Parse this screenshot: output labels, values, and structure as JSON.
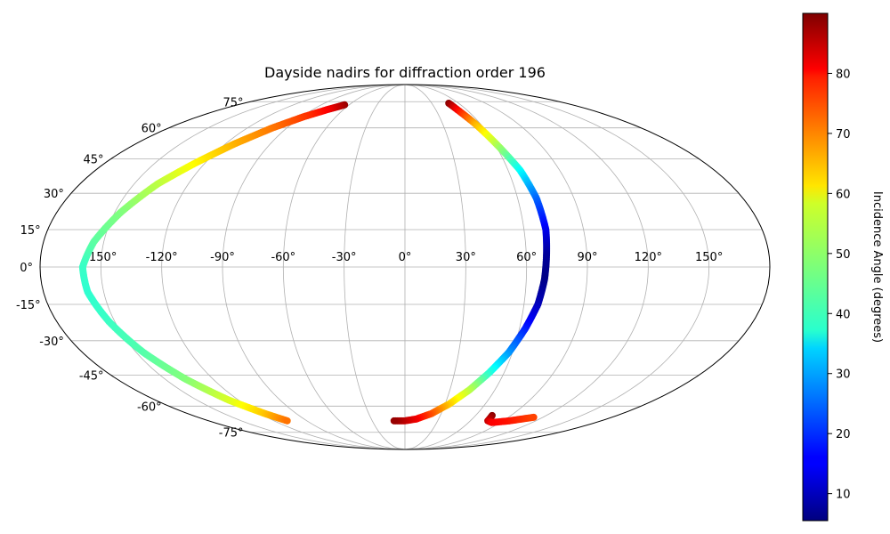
{
  "chart_data": {
    "type": "scatter",
    "projection": "mollweide",
    "title": "Dayside nadirs for diffraction order 196",
    "xlabel": "",
    "ylabel": "",
    "grid": true,
    "lon_range": [
      -180,
      180
    ],
    "lat_range": [
      -90,
      90
    ],
    "lon_ticks": [
      -150,
      -120,
      -90,
      -60,
      -30,
      0,
      30,
      60,
      90,
      120,
      150
    ],
    "lat_ticks": [
      -75,
      -60,
      -45,
      -30,
      -15,
      0,
      15,
      30,
      45,
      60,
      75
    ],
    "lon_tick_labels": [
      "-150°",
      "-120°",
      "-90°",
      "-60°",
      "-30°",
      "0°",
      "30°",
      "60°",
      "90°",
      "120°",
      "150°"
    ],
    "lat_tick_labels": [
      "-75°",
      "-60°",
      "-45°",
      "-30°",
      "-15°",
      "0°",
      "15°",
      "30°",
      "45°",
      "60°",
      "75°"
    ],
    "colorbar": {
      "label": "Incidence Angle (degrees)",
      "colormap": "jet",
      "range": [
        5.5,
        90
      ],
      "ticks": [
        10,
        20,
        30,
        40,
        50,
        60,
        70,
        80
      ],
      "tick_labels": [
        "10",
        "20",
        "30",
        "40",
        "50",
        "60",
        "70",
        "80"
      ]
    },
    "series": [
      {
        "points": [
          {
            "lon": -65,
            "lat": 73,
            "inc": 88
          },
          {
            "lon": -76,
            "lat": 70,
            "inc": 80
          },
          {
            "lon": -88,
            "lat": 66,
            "inc": 75
          },
          {
            "lon": -101,
            "lat": 60,
            "inc": 70
          },
          {
            "lon": -114,
            "lat": 52,
            "inc": 65
          },
          {
            "lon": -126,
            "lat": 43,
            "inc": 59
          },
          {
            "lon": -137,
            "lat": 34,
            "inc": 53
          },
          {
            "lon": -147,
            "lat": 22,
            "inc": 48
          },
          {
            "lon": -155,
            "lat": 10,
            "inc": 45
          },
          {
            "lon": -159,
            "lat": 0,
            "inc": 42
          },
          {
            "lon": -158,
            "lat": -10,
            "inc": 41
          },
          {
            "lon": -153,
            "lat": -22,
            "inc": 42
          },
          {
            "lon": -146,
            "lat": -35,
            "inc": 44
          },
          {
            "lon": -137,
            "lat": -47,
            "inc": 48
          },
          {
            "lon": -127,
            "lat": -57,
            "inc": 55
          },
          {
            "lon": -116,
            "lat": -64,
            "inc": 63
          },
          {
            "lon": -108,
            "lat": -68,
            "inc": 70
          }
        ]
      },
      {
        "points": [
          {
            "lon": 49,
            "lat": 74,
            "inc": 89
          },
          {
            "lon": 51,
            "lat": 70,
            "inc": 80
          },
          {
            "lon": 56,
            "lat": 62,
            "inc": 65
          },
          {
            "lon": 62,
            "lat": 50,
            "inc": 50
          },
          {
            "lon": 67,
            "lat": 40,
            "inc": 38
          },
          {
            "lon": 70,
            "lat": 28,
            "inc": 25
          },
          {
            "lon": 71,
            "lat": 15,
            "inc": 15
          },
          {
            "lon": 70,
            "lat": 5,
            "inc": 8
          },
          {
            "lon": 69,
            "lat": -5,
            "inc": 6
          },
          {
            "lon": 67,
            "lat": -15,
            "inc": 10
          },
          {
            "lon": 63,
            "lat": -25,
            "inc": 18
          },
          {
            "lon": 58,
            "lat": -35,
            "inc": 28
          },
          {
            "lon": 51,
            "lat": -44,
            "inc": 40
          },
          {
            "lon": 43,
            "lat": -52,
            "inc": 52
          },
          {
            "lon": 33,
            "lat": -59,
            "inc": 62
          },
          {
            "lon": 22,
            "lat": -64,
            "inc": 72
          },
          {
            "lon": 10,
            "lat": -67,
            "inc": 80
          },
          {
            "lon": 0,
            "lat": -68,
            "inc": 84
          },
          {
            "lon": -10,
            "lat": -68,
            "inc": 88
          }
        ]
      },
      {
        "points": [
          {
            "lon": 74,
            "lat": -65,
            "inc": 89
          },
          {
            "lon": 76,
            "lat": -68,
            "inc": 84
          },
          {
            "lon": 82,
            "lat": -69,
            "inc": 80
          },
          {
            "lon": 96,
            "lat": -68,
            "inc": 78
          },
          {
            "lon": 112,
            "lat": -66,
            "inc": 74
          }
        ]
      }
    ]
  }
}
